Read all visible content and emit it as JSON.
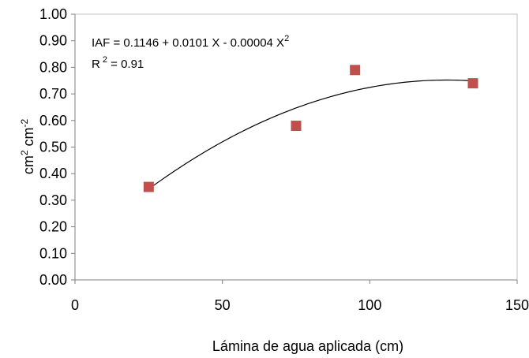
{
  "chart_data": {
    "type": "scatter",
    "xlabel": "Lámina de agua aplicada (cm)",
    "ylabel": {
      "base1": "cm",
      "sup1": "2",
      "base2": " cm",
      "sup2": "-2"
    },
    "xlim": [
      0,
      150
    ],
    "ylim": [
      0,
      1.0
    ],
    "x_ticks": [
      {
        "value": 0,
        "label": "0"
      },
      {
        "value": 50,
        "label": "50"
      },
      {
        "value": 100,
        "label": "100"
      },
      {
        "value": 150,
        "label": "150"
      }
    ],
    "y_ticks": [
      {
        "value": 0.0,
        "label": "0.00"
      },
      {
        "value": 0.1,
        "label": "0.10"
      },
      {
        "value": 0.2,
        "label": "0.20"
      },
      {
        "value": 0.3,
        "label": "0.30"
      },
      {
        "value": 0.4,
        "label": "0.40"
      },
      {
        "value": 0.5,
        "label": "0.50"
      },
      {
        "value": 0.6,
        "label": "0.60"
      },
      {
        "value": 0.7,
        "label": "0.70"
      },
      {
        "value": 0.8,
        "label": "0.80"
      },
      {
        "value": 0.9,
        "label": "0.90"
      },
      {
        "value": 1.0,
        "label": "1.00"
      }
    ],
    "points": [
      {
        "x": 25,
        "y": 0.35
      },
      {
        "x": 75,
        "y": 0.58
      },
      {
        "x": 95,
        "y": 0.79
      },
      {
        "x": 135,
        "y": 0.74
      }
    ],
    "trendline": {
      "type": "polynomial",
      "coefficients": [
        0.1146,
        0.0101,
        -4e-05
      ],
      "x_range": [
        25,
        135
      ]
    },
    "equation": {
      "main": "IAF = 0.1146 + 0.0101 X - 0.00004 X",
      "main_sup": "2",
      "r2_base": "R",
      "r2_sup": "2",
      "r2_value": " = 0.91"
    },
    "grid": false,
    "legend": "none",
    "colors": {
      "marker": "#c0504d",
      "trendline": "#000000",
      "axis": "#808080",
      "plot_border": "#bfbfbf"
    }
  }
}
